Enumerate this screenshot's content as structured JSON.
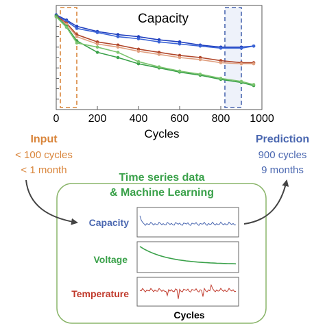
{
  "colors": {
    "input": "#d9853b",
    "prediction": "#4a67b0",
    "ml": "#3aa14a",
    "capacity_label": "#4a67b0",
    "voltage_label": "#3aa14a",
    "temperature_label": "#c0392b",
    "series_blue": "#1f3fbf",
    "series_red": "#b0462a",
    "series_green": "#3aa14a",
    "box_border": "#8ab56a"
  },
  "chart_data": {
    "type": "line",
    "title": "Capacity",
    "xlabel": "Cycles",
    "ylabel": "",
    "xlim": [
      0,
      1000
    ],
    "xticks": [
      "0",
      "200",
      "400",
      "600",
      "800",
      "1000"
    ],
    "ylim": [
      0,
      1
    ],
    "series": [
      {
        "color": "#1f3fbf",
        "x": [
          0,
          50,
          100,
          200,
          300,
          400,
          500,
          600,
          700,
          800,
          900,
          960
        ],
        "y": [
          0.91,
          0.86,
          0.8,
          0.75,
          0.72,
          0.7,
          0.67,
          0.65,
          0.62,
          0.6,
          0.6,
          0.61
        ]
      },
      {
        "color": "#3b64d6",
        "x": [
          0,
          50,
          100,
          200,
          300,
          400,
          500,
          600,
          700,
          800,
          900,
          960
        ],
        "y": [
          0.9,
          0.85,
          0.78,
          0.74,
          0.7,
          0.68,
          0.65,
          0.63,
          0.61,
          0.59,
          0.59,
          0.61
        ]
      },
      {
        "color": "#b0462a",
        "x": [
          0,
          50,
          100,
          200,
          300,
          400,
          500,
          600,
          700,
          800,
          900,
          960
        ],
        "y": [
          0.9,
          0.83,
          0.72,
          0.65,
          0.62,
          0.58,
          0.55,
          0.52,
          0.5,
          0.47,
          0.45,
          0.45
        ]
      },
      {
        "color": "#e0a080",
        "x": [
          0,
          50,
          100,
          200,
          300,
          400,
          500,
          600,
          700,
          800,
          900,
          960
        ],
        "y": [
          0.89,
          0.82,
          0.7,
          0.63,
          0.6,
          0.56,
          0.53,
          0.5,
          0.48,
          0.45,
          0.44,
          0.44
        ]
      },
      {
        "color": "#3aa14a",
        "x": [
          0,
          50,
          100,
          200,
          300,
          400,
          500,
          600,
          700,
          800,
          900,
          960
        ],
        "y": [
          0.9,
          0.8,
          0.66,
          0.55,
          0.5,
          0.44,
          0.4,
          0.36,
          0.33,
          0.29,
          0.26,
          0.23
        ]
      },
      {
        "color": "#7cc46f",
        "x": [
          0,
          50,
          100,
          200,
          300,
          400,
          500,
          600,
          700,
          800,
          900,
          960
        ],
        "y": [
          0.89,
          0.79,
          0.64,
          0.6,
          0.55,
          0.46,
          0.41,
          0.37,
          0.34,
          0.3,
          0.27,
          0.24
        ]
      }
    ],
    "highlight_ranges": [
      {
        "x": [
          20,
          100
        ],
        "color": "#d9853b"
      },
      {
        "x": [
          820,
          900
        ],
        "color": "#4a67b0"
      }
    ],
    "grid": false,
    "legend": "none"
  },
  "input": {
    "title": "Input",
    "line1": "< 100 cycles",
    "line2": "< 1 month"
  },
  "prediction": {
    "title": "Prediction",
    "line1": "900 cycles",
    "line2": "9 months"
  },
  "ml": {
    "line1": "Time series data",
    "line2": "& Machine Learning"
  },
  "panels": {
    "capacity": "Capacity",
    "voltage": "Voltage",
    "temperature": "Temperature",
    "xlabel": "Cycles"
  }
}
